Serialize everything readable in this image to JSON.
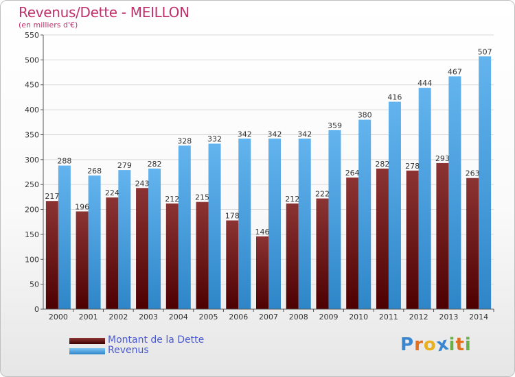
{
  "title": "Revenus/Dette - MEILLON",
  "subtitle": "(en milliers d'€)",
  "logo": {
    "letters": [
      "P",
      "r",
      "o",
      "x",
      "i",
      "t",
      "i"
    ],
    "colors": [
      "#3a86d0",
      "#e07020",
      "#e8b020",
      "#3a86d0",
      "#6ab04a",
      "#e07020",
      "#6ab04a"
    ]
  },
  "colors": {
    "dette_top": "#8c3434",
    "dette_bottom": "#4d0000",
    "revenus_top": "#63b4ee",
    "revenus_bottom": "#2e86c8",
    "title": "#c0306a",
    "legend_text": "#4a5ad0"
  },
  "legend": [
    {
      "label": "Montant de la Dette",
      "color": "#6e1a1a"
    },
    {
      "label": "Revenus",
      "color": "#3f9de0"
    }
  ],
  "chart_data": {
    "type": "bar",
    "categories": [
      "2000",
      "2001",
      "2002",
      "2003",
      "2004",
      "2005",
      "2006",
      "2007",
      "2008",
      "2009",
      "2010",
      "2011",
      "2012",
      "2013",
      "2014"
    ],
    "series": [
      {
        "name": "Montant de la Dette",
        "values": [
          217,
          196,
          224,
          243,
          212,
          215,
          178,
          146,
          212,
          222,
          264,
          282,
          278,
          293,
          263
        ]
      },
      {
        "name": "Revenus",
        "values": [
          288,
          268,
          279,
          282,
          328,
          332,
          342,
          342,
          342,
          359,
          380,
          416,
          444,
          467,
          507
        ]
      }
    ],
    "yticks": [
      0,
      50,
      100,
      150,
      200,
      250,
      300,
      350,
      400,
      450,
      500,
      550
    ],
    "ylim": [
      0,
      550
    ],
    "grid": true,
    "legend_position": "bottom-left"
  }
}
